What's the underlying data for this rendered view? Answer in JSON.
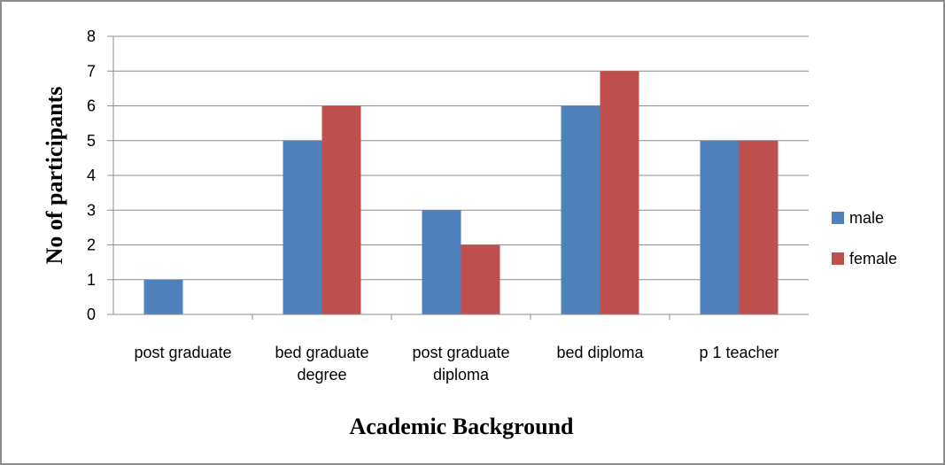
{
  "chart_data": {
    "type": "bar",
    "categories": [
      [
        "post graduate"
      ],
      [
        "bed graduate",
        "degree"
      ],
      [
        "post graduate",
        "diploma"
      ],
      [
        "bed diploma"
      ],
      [
        "p 1 teacher"
      ]
    ],
    "series": [
      {
        "name": "male",
        "color": "#4F81BD",
        "values": [
          1,
          5,
          3,
          6,
          5
        ]
      },
      {
        "name": "female",
        "color": "#C0504D",
        "values": [
          0,
          6,
          2,
          7,
          5
        ]
      }
    ],
    "title": "",
    "xlabel": "Academic Background",
    "ylabel": "No of participants",
    "ylim": [
      0,
      8
    ],
    "yticks": [
      0,
      1,
      2,
      3,
      4,
      5,
      6,
      7,
      8
    ],
    "grid": true,
    "legend_position": "right"
  }
}
